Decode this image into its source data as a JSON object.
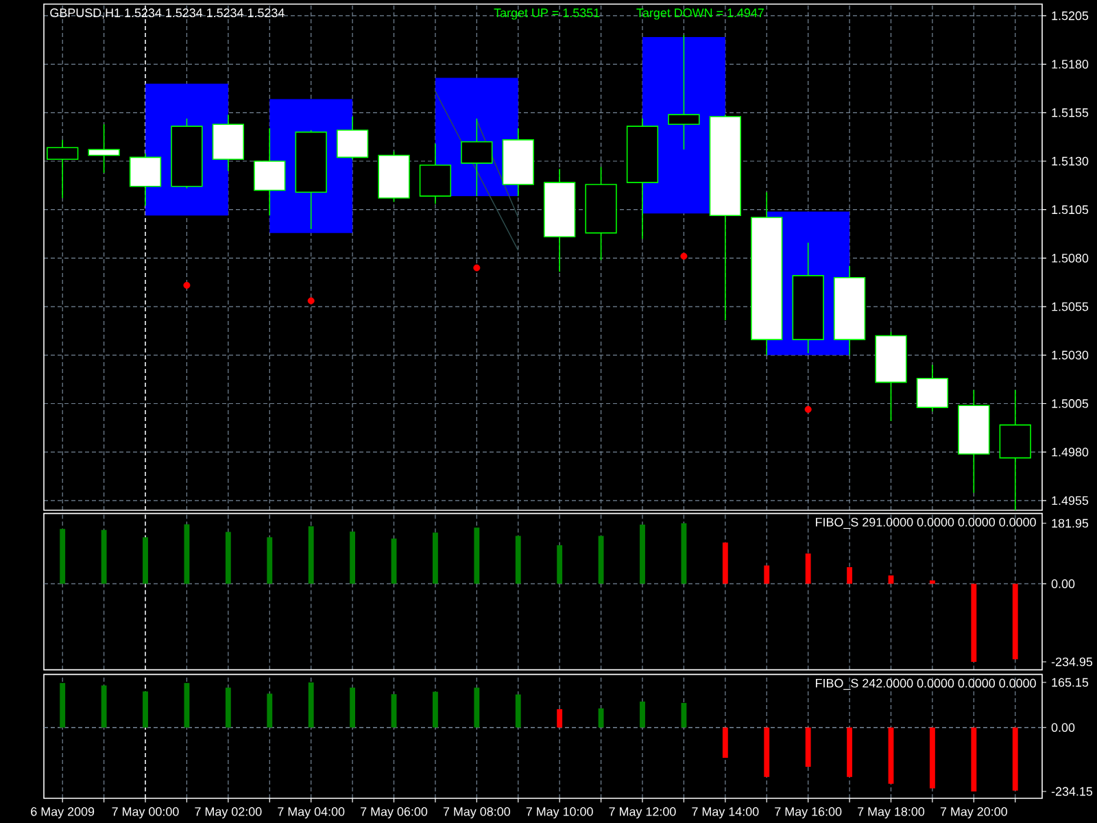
{
  "chart_data": [
    {
      "type": "candlestick",
      "title": "GBPUSD,H1  1.5234 1.5234 1.5234 1.5234",
      "annotations": [
        "Target UP = 1.5351",
        "Target DOWN = 1.4947"
      ],
      "x": [
        "2009-05-06T22:00",
        "2009-05-06T23:00",
        "2009-05-07T00:00",
        "2009-05-07T01:00",
        "2009-05-07T02:00",
        "2009-05-07T03:00",
        "2009-05-07T04:00",
        "2009-05-07T05:00",
        "2009-05-07T06:00",
        "2009-05-07T07:00",
        "2009-05-07T08:00",
        "2009-05-07T09:00",
        "2009-05-07T10:00",
        "2009-05-07T11:00",
        "2009-05-07T12:00",
        "2009-05-07T13:00",
        "2009-05-07T14:00",
        "2009-05-07T15:00",
        "2009-05-07T16:00",
        "2009-05-07T17:00",
        "2009-05-07T18:00",
        "2009-05-07T19:00",
        "2009-05-07T20:00",
        "2009-05-07T21:00"
      ],
      "ohlc": [
        [
          1.5131,
          1.5141,
          1.5111,
          1.5137
        ],
        [
          1.5136,
          1.5149,
          1.5124,
          1.5133
        ],
        [
          1.5132,
          1.5134,
          1.5107,
          1.5117
        ],
        [
          1.5117,
          1.5152,
          1.5116,
          1.5148
        ],
        [
          1.5149,
          1.5154,
          1.5125,
          1.5131
        ],
        [
          1.513,
          1.5147,
          1.5102,
          1.5115
        ],
        [
          1.5114,
          1.5146,
          1.5095,
          1.5145
        ],
        [
          1.5146,
          1.5153,
          1.5131,
          1.5132
        ],
        [
          1.5133,
          1.5135,
          1.5109,
          1.5111
        ],
        [
          1.5112,
          1.5139,
          1.5108,
          1.5128
        ],
        [
          1.5129,
          1.5152,
          1.5112,
          1.514
        ],
        [
          1.5141,
          1.5147,
          1.5112,
          1.5118
        ],
        [
          1.5119,
          1.5126,
          1.5073,
          1.5091
        ],
        [
          1.5093,
          1.5127,
          1.5079,
          1.5118
        ],
        [
          1.5119,
          1.5152,
          1.509,
          1.5148
        ],
        [
          1.5149,
          1.5195,
          1.5136,
          1.5154
        ],
        [
          1.5153,
          1.5154,
          1.5048,
          1.5102
        ],
        [
          1.5101,
          1.5114,
          1.503,
          1.5038
        ],
        [
          1.5038,
          1.5088,
          1.5031,
          1.5071
        ],
        [
          1.507,
          1.5076,
          1.503,
          1.5038
        ],
        [
          1.504,
          1.5042,
          1.4996,
          1.5016
        ],
        [
          1.5018,
          1.5025,
          1.5001,
          1.5003
        ],
        [
          1.5004,
          1.5012,
          1.4959,
          1.4979
        ],
        [
          1.4977,
          1.5012,
          1.495,
          1.4994
        ]
      ],
      "color": "#00ff00",
      "series": [
        {
          "type": "bar",
          "x": [
            "2009-05-07T01:00",
            "2009-05-07T04:00",
            "2009-05-07T08:00",
            "2009-05-07T13:00",
            "2009-05-07T16:00"
          ],
          "base": [
            1.5102,
            1.5093,
            1.5112,
            1.5103,
            1.503
          ],
          "values": [
            0.0068,
            0.0069,
            0.0061,
            0.0091,
            0.0074
          ],
          "color": "#0000ff"
        },
        {
          "type": "line",
          "x": [
            "2009-05-07T07:00",
            "2009-05-07T09:00"
          ],
          "values": [
            1.5166,
            1.5084
          ],
          "color": "#2f4f4f"
        },
        {
          "type": "line",
          "x": [
            "2009-05-07T08:00",
            "2009-05-07T09:00"
          ],
          "values": [
            1.5151,
            1.5101
          ],
          "color": "#2f4f4f"
        },
        {
          "type": "scatter",
          "x": [
            "2009-05-07T01:00",
            "2009-05-07T04:00",
            "2009-05-07T08:00",
            "2009-05-07T13:00",
            "2009-05-07T16:00"
          ],
          "values": [
            1.5066,
            1.5058,
            1.5075,
            1.5081,
            1.5002
          ],
          "color": "#ff0000",
          "marker": "circle"
        }
      ],
      "xlim": [
        "2009-05-06T21:33",
        "2009-05-07T21:39"
      ],
      "ylim": [
        1.495,
        1.5211
      ],
      "xticks": [
        "2009-05-06T22:00",
        "2009-05-06T23:00",
        "2009-05-07T00:00",
        "2009-05-07T01:00",
        "2009-05-07T02:00",
        "2009-05-07T03:00",
        "2009-05-07T04:00",
        "2009-05-07T05:00",
        "2009-05-07T06:00",
        "2009-05-07T07:00",
        "2009-05-07T08:00",
        "2009-05-07T09:00",
        "2009-05-07T10:00",
        "2009-05-07T11:00",
        "2009-05-07T12:00",
        "2009-05-07T13:00",
        "2009-05-07T14:00",
        "2009-05-07T15:00",
        "2009-05-07T16:00",
        "2009-05-07T17:00",
        "2009-05-07T18:00",
        "2009-05-07T19:00",
        "2009-05-07T20:00",
        "2009-05-07T21:00"
      ],
      "yticks": [
        1.4955,
        {
          "value": 1.498,
          "label": "1.4980"
        },
        1.5005,
        {
          "value": 1.503,
          "label": "1.5030"
        },
        1.5055,
        {
          "value": 1.508,
          "label": "1.5080"
        },
        1.5105,
        {
          "value": 1.513,
          "label": "1.5130"
        },
        1.5155,
        {
          "value": 1.518,
          "label": "1.5180"
        },
        1.5205
      ],
      "grid": true,
      "tick_labels": "y",
      "ref_lines": [
        {
          "axis": "x",
          "value": "2009-05-07T00:00",
          "color": "#ffffff",
          "line_style": "dashed"
        }
      ]
    },
    {
      "type": "bar",
      "title": "FIBO_S 291.0000 0.0000 0.0000 0.0000",
      "x": [
        "2009-05-06T22:00",
        "2009-05-06T23:00",
        "2009-05-07T00:00",
        "2009-05-07T01:00",
        "2009-05-07T02:00",
        "2009-05-07T03:00",
        "2009-05-07T04:00",
        "2009-05-07T05:00",
        "2009-05-07T06:00",
        "2009-05-07T07:00",
        "2009-05-07T08:00",
        "2009-05-07T09:00",
        "2009-05-07T10:00",
        "2009-05-07T11:00",
        "2009-05-07T12:00",
        "2009-05-07T13:00",
        "2009-05-07T14:00",
        "2009-05-07T15:00",
        "2009-05-07T16:00",
        "2009-05-07T17:00",
        "2009-05-07T18:00",
        "2009-05-07T19:00",
        "2009-05-07T20:00",
        "2009-05-07T21:00"
      ],
      "values": [
        165,
        162,
        140,
        179,
        156,
        140,
        173,
        157,
        136,
        154,
        169,
        144,
        116,
        144,
        178,
        182,
        124,
        55,
        91,
        50,
        25,
        10,
        -235,
        -227
      ],
      "colors": [
        "#008000",
        "#008000",
        "#008000",
        "#008000",
        "#008000",
        "#008000",
        "#008000",
        "#008000",
        "#008000",
        "#008000",
        "#008000",
        "#008000",
        "#008000",
        "#008000",
        "#008000",
        "#008000",
        "#ff0000",
        "#ff0000",
        "#ff0000",
        "#ff0000",
        "#ff0000",
        "#ff0000",
        "#ff0000",
        "#ff0000"
      ],
      "xlim": [
        "2009-05-06T21:33",
        "2009-05-07T21:39"
      ],
      "ylim": [
        -258.9,
        211.7
      ],
      "xticks": [
        "2009-05-06T22:00",
        "2009-05-06T23:00",
        "2009-05-07T00:00",
        "2009-05-07T01:00",
        "2009-05-07T02:00",
        "2009-05-07T03:00",
        "2009-05-07T04:00",
        "2009-05-07T05:00",
        "2009-05-07T06:00",
        "2009-05-07T07:00",
        "2009-05-07T08:00",
        "2009-05-07T09:00",
        "2009-05-07T10:00",
        "2009-05-07T11:00",
        "2009-05-07T12:00",
        "2009-05-07T13:00",
        "2009-05-07T14:00",
        "2009-05-07T15:00",
        "2009-05-07T16:00",
        "2009-05-07T17:00",
        "2009-05-07T18:00",
        "2009-05-07T19:00",
        "2009-05-07T20:00",
        "2009-05-07T21:00"
      ],
      "yticks": [
        -234.95,
        {
          "value": 0,
          "label": "0.00"
        },
        181.95
      ],
      "grid": "x",
      "tick_labels": "y",
      "ref_lines": [
        {
          "axis": "y",
          "value": 0,
          "color": "#778899",
          "line_style": "dashed"
        },
        {
          "axis": "x",
          "value": "2009-05-07T00:00",
          "color": "#ffffff",
          "line_style": "dashed"
        }
      ]
    },
    {
      "type": "bar",
      "title": "FIBO_S 242.0000 0.0000 0.0000 0.0000",
      "x": [
        "2009-05-06T22:00",
        "2009-05-06T23:00",
        "2009-05-07T00:00",
        "2009-05-07T01:00",
        "2009-05-07T02:00",
        "2009-05-07T03:00",
        "2009-05-07T04:00",
        "2009-05-07T05:00",
        "2009-05-07T06:00",
        "2009-05-07T07:00",
        "2009-05-07T08:00",
        "2009-05-07T09:00",
        "2009-05-07T10:00",
        "2009-05-07T11:00",
        "2009-05-07T12:00",
        "2009-05-07T13:00",
        "2009-05-07T14:00",
        "2009-05-07T15:00",
        "2009-05-07T16:00",
        "2009-05-07T17:00",
        "2009-05-07T18:00",
        "2009-05-07T19:00",
        "2009-05-07T20:00",
        "2009-05-07T21:00"
      ],
      "values": [
        163,
        154,
        132,
        163,
        146,
        124,
        165,
        146,
        122,
        131,
        146,
        121,
        67,
        70,
        95,
        90,
        -111,
        -181,
        -144,
        -181,
        -206,
        -223,
        -234,
        -231
      ],
      "colors": [
        "#008000",
        "#008000",
        "#008000",
        "#008000",
        "#008000",
        "#008000",
        "#008000",
        "#008000",
        "#008000",
        "#008000",
        "#008000",
        "#008000",
        "#ff0000",
        "#008000",
        "#008000",
        "#008000",
        "#ff0000",
        "#ff0000",
        "#ff0000",
        "#ff0000",
        "#ff0000",
        "#ff0000",
        "#ff0000",
        "#ff0000"
      ],
      "xlim": [
        "2009-05-06T21:33",
        "2009-05-07T21:39"
      ],
      "ylim": [
        -259.3,
        194.3
      ],
      "xticks": [
        {
          "value": "2009-05-06T22:00",
          "label": "6 May 2009"
        },
        {
          "value": "2009-05-06T23:00",
          "label": null
        },
        {
          "value": "2009-05-07T00:00",
          "label": "7 May 00:00"
        },
        {
          "value": "2009-05-07T01:00",
          "label": null
        },
        {
          "value": "2009-05-07T02:00",
          "label": "7 May 02:00"
        },
        {
          "value": "2009-05-07T03:00",
          "label": null
        },
        {
          "value": "2009-05-07T04:00",
          "label": "7 May 04:00"
        },
        {
          "value": "2009-05-07T05:00",
          "label": null
        },
        {
          "value": "2009-05-07T06:00",
          "label": "7 May 06:00"
        },
        {
          "value": "2009-05-07T07:00",
          "label": null
        },
        {
          "value": "2009-05-07T08:00",
          "label": "7 May 08:00"
        },
        {
          "value": "2009-05-07T09:00",
          "label": null
        },
        {
          "value": "2009-05-07T10:00",
          "label": "7 May 10:00"
        },
        {
          "value": "2009-05-07T11:00",
          "label": null
        },
        {
          "value": "2009-05-07T12:00",
          "label": "7 May 12:00"
        },
        {
          "value": "2009-05-07T13:00",
          "label": null
        },
        {
          "value": "2009-05-07T14:00",
          "label": "7 May 14:00"
        },
        {
          "value": "2009-05-07T15:00",
          "label": null
        },
        {
          "value": "2009-05-07T16:00",
          "label": "7 May 16:00"
        },
        {
          "value": "2009-05-07T17:00",
          "label": null
        },
        {
          "value": "2009-05-07T18:00",
          "label": "7 May 18:00"
        },
        {
          "value": "2009-05-07T19:00",
          "label": null
        },
        {
          "value": "2009-05-07T20:00",
          "label": "7 May 20:00"
        },
        {
          "value": "2009-05-07T21:00",
          "label": null
        }
      ],
      "yticks": [
        -234.15,
        {
          "value": 0,
          "label": "0.00"
        },
        165.15
      ],
      "grid": "x",
      "ref_lines": [
        {
          "axis": "y",
          "value": 0,
          "color": "#778899",
          "line_style": "dashed"
        },
        {
          "axis": "x",
          "value": "2009-05-07T00:00",
          "color": "#ffffff",
          "line_style": "dashed"
        }
      ]
    }
  ]
}
